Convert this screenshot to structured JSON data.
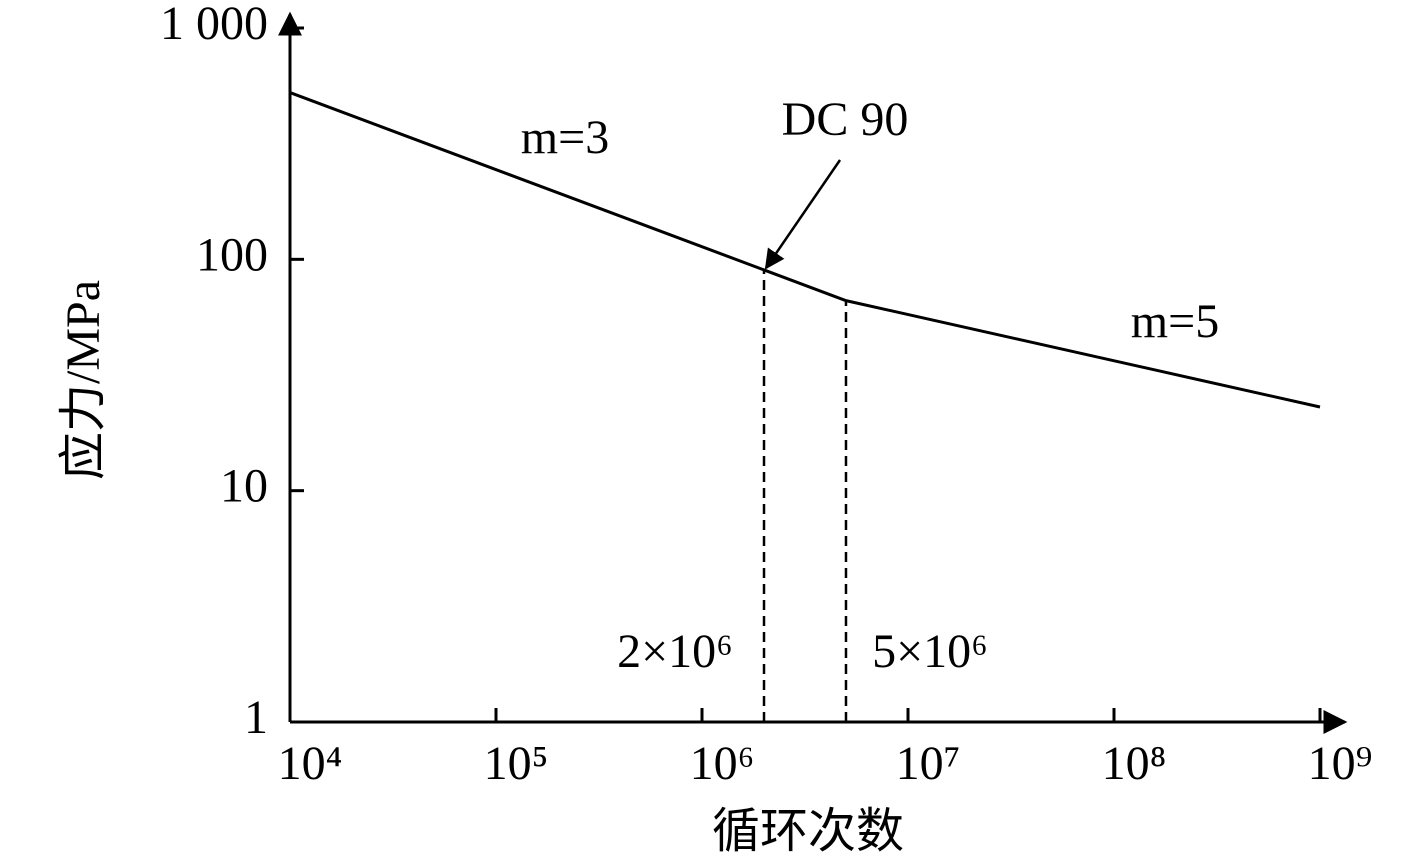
{
  "chart_data": {
    "type": "line",
    "x_label": "循环次数",
    "y_label": "应力/MPa",
    "log_x": true,
    "log_y": true,
    "x": [
      10000,
      2000000,
      5000000,
      1000000000
    ],
    "series": [
      {
        "name": "DC 90",
        "color": "#000000",
        "values": [
          526,
          90,
          66.3,
          23
        ]
      }
    ],
    "xlim": [
      10000,
      1000000000
    ],
    "xticks": [
      {
        "value": 10000,
        "label": "10⁴"
      },
      {
        "value": 100000,
        "label": "10⁵"
      },
      {
        "value": 1000000,
        "label": "10⁶"
      },
      {
        "value": 10000000,
        "label": "10⁷"
      },
      {
        "value": 100000000,
        "label": "10⁸"
      },
      {
        "value": 1000000000,
        "label": "10⁹"
      }
    ],
    "ylim": [
      1,
      1000
    ],
    "yticks": [
      1,
      10,
      100,
      {
        "value": 1000,
        "label": "1 000"
      }
    ],
    "annotations": [
      "m=3",
      "DC 90",
      "m=5",
      "2×10⁶",
      "5×10⁶"
    ]
  }
}
